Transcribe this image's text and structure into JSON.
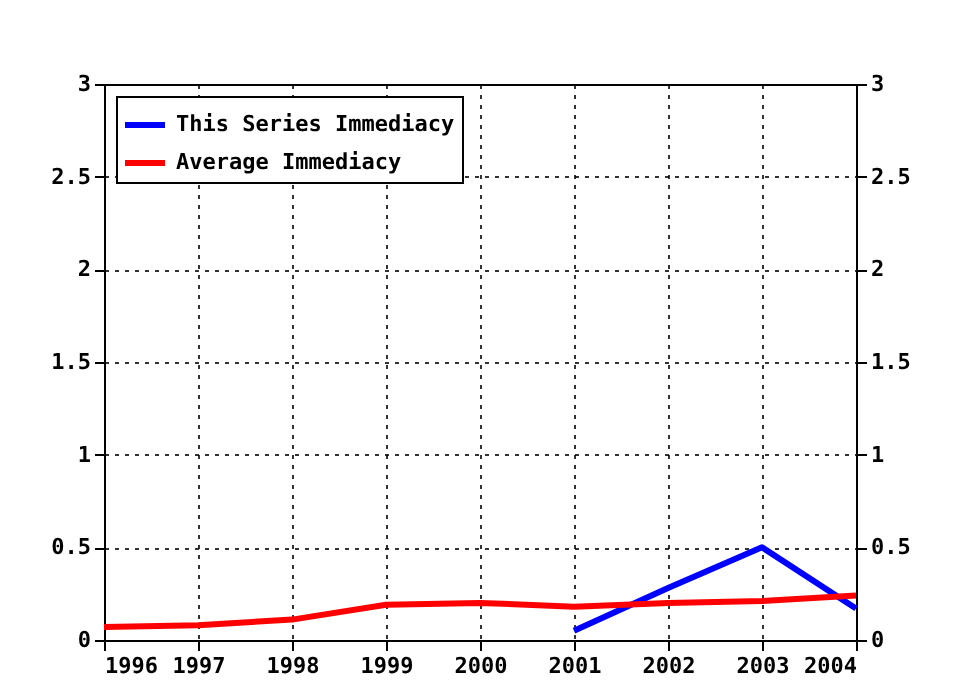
{
  "chart_data": {
    "type": "line",
    "x": [
      1996,
      1997,
      1998,
      1999,
      2000,
      2001,
      2002,
      2003,
      2004
    ],
    "series": [
      {
        "name": "This Series Immediacy",
        "color": "#0000ff",
        "values": [
          null,
          null,
          null,
          null,
          null,
          0.05,
          0.28,
          0.5,
          0.17
        ]
      },
      {
        "name": "Average Immediacy",
        "color": "#ff0000",
        "values": [
          0.07,
          0.08,
          0.11,
          0.19,
          0.2,
          0.18,
          0.2,
          0.21,
          0.24
        ]
      }
    ],
    "xlim": [
      1996,
      2004
    ],
    "xticks": [
      1996,
      1997,
      1998,
      1999,
      2000,
      2001,
      2002,
      2003,
      2004
    ],
    "ylim": [
      0,
      3
    ],
    "yticks": [
      0,
      0.5,
      1,
      1.5,
      2,
      2.5,
      3
    ],
    "y2lim": [
      0,
      3
    ],
    "y2ticks": [
      0,
      0.5,
      1,
      1.5,
      2,
      2.5,
      3
    ],
    "grid": true,
    "legend": "top left",
    "marker": "none",
    "line_style": "solid"
  }
}
